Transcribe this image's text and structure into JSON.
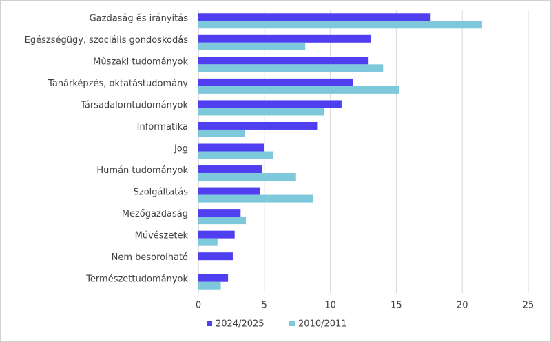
{
  "chart_data": {
    "type": "hbar",
    "categories": [
      "Gazdaság és irányítás",
      "Egészségügy, szociális gondoskodás",
      "Műszaki tudományok",
      "Tanárképzés, oktatástudomány",
      "Társadalomtudományok",
      "Informatika",
      "Jog",
      "Humán tudományok",
      "Szolgáltatás",
      "Mezőgazdaság",
      "Művészetek",
      "Nem besorolható",
      "Természettudományok"
    ],
    "series": [
      {
        "name": "2024/2025",
        "color": "#4f3ff0",
        "values": [
          17.6,
          13.05,
          12.9,
          11.7,
          10.85,
          9.0,
          5.0,
          4.8,
          4.65,
          3.2,
          2.75,
          2.65,
          2.25
        ]
      },
      {
        "name": "2010/2011",
        "color": "#7ec8dc",
        "values": [
          21.5,
          8.1,
          14.0,
          15.2,
          9.5,
          3.5,
          5.65,
          7.4,
          8.7,
          3.6,
          1.45,
          null,
          1.7
        ]
      }
    ],
    "xlim": [
      0,
      25
    ],
    "xticks": [
      0,
      5,
      10,
      15,
      20,
      25
    ],
    "grid": true
  }
}
